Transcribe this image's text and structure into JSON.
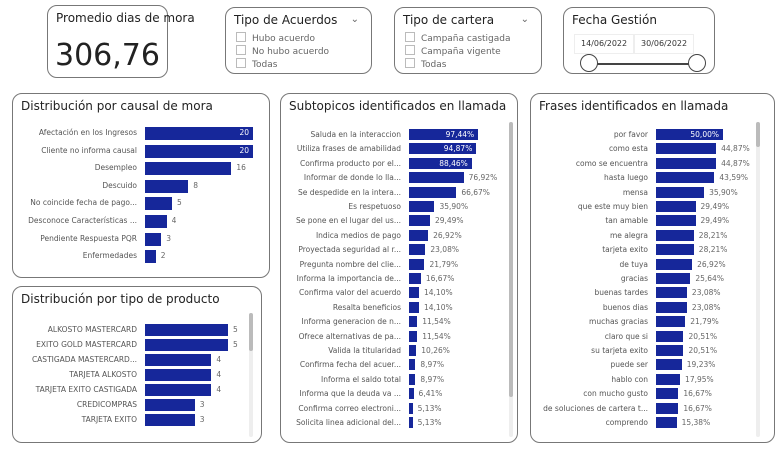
{
  "kpi": {
    "title": "Promedio dias de mora",
    "value": "306,76"
  },
  "acuerdos": {
    "title": "Tipo de Acuerdos",
    "options": [
      "Hubo acuerdo",
      "No hubo acuerdo",
      "Todas"
    ]
  },
  "cartera": {
    "title": "Tipo de cartera",
    "options": [
      "Campaña castigada",
      "Campaña vigente",
      "Todas"
    ]
  },
  "fecha": {
    "title": "Fecha Gestión",
    "start": "14/06/2022",
    "end": "30/06/2022"
  },
  "chart_data": [
    {
      "id": "causal",
      "type": "bar",
      "orientation": "horizontal",
      "title": "Distribución por causal de mora",
      "max": 20,
      "categories": [
        "Afectación en los Ingresos",
        "Cliente no informa causal",
        "Desempleo",
        "Descuido",
        "No coincide fecha de pago...",
        "Desconoce Características ...",
        "Pendiente Respuesta PQR",
        "Enfermedades"
      ],
      "values": [
        20,
        20,
        16,
        8,
        5,
        4,
        3,
        2
      ],
      "labels": [
        "20",
        "20",
        "16",
        "8",
        "5",
        "4",
        "3",
        "2"
      ]
    },
    {
      "id": "producto",
      "type": "bar",
      "orientation": "horizontal",
      "title": "Distribución por tipo de producto",
      "max": 5,
      "categories": [
        "ALKOSTO MASTERCARD",
        "EXITO GOLD MASTERCARD",
        "CASTIGADA MASTERCARD...",
        "TARJETA ALKOSTO",
        "TARJETA EXITO CASTIGADA",
        "CREDICOMPRAS",
        "TARJETA EXITO"
      ],
      "values": [
        5,
        5,
        4,
        4,
        4,
        3,
        3
      ],
      "labels": [
        "5",
        "5",
        "4",
        "4",
        "4",
        "3",
        "3"
      ]
    },
    {
      "id": "subtopicos",
      "type": "bar",
      "orientation": "horizontal",
      "title": "Subtopicos identificados en llamada",
      "max": 100,
      "categories": [
        "Saluda en la interaccion",
        "Utiliza frases de amabilidad",
        "Confirma producto por el...",
        "Informar de donde lo lla...",
        "Se despedide en la intera...",
        "Es respetuoso",
        "Se pone en el lugar del us...",
        "Indica medios de pago",
        "Proyectada seguridad al r...",
        "Pregunta nombre del clie...",
        "Informa la importancia de...",
        "Confirma valor del acuerdo",
        "Resalta beneficios",
        "Informa generacion de n...",
        "Ofrece alternativas de pa...",
        "Valida la titularidad",
        "Confirma fecha del acuer...",
        "Informa el saldo total",
        "Informa que la deuda va ...",
        "Confirma correo electroni...",
        "Solicita linea adicional del..."
      ],
      "values": [
        97.44,
        94.87,
        88.46,
        76.92,
        66.67,
        35.9,
        29.49,
        26.92,
        23.08,
        21.79,
        16.67,
        14.1,
        14.1,
        11.54,
        11.54,
        10.26,
        8.97,
        8.97,
        6.41,
        5.13,
        5.13
      ],
      "labels": [
        "97,44%",
        "94,87%",
        "88,46%",
        "76,92%",
        "66,67%",
        "35,90%",
        "29,49%",
        "26,92%",
        "23,08%",
        "21,79%",
        "16,67%",
        "14,10%",
        "14,10%",
        "11,54%",
        "11,54%",
        "10,26%",
        "8,97%",
        "8,97%",
        "6,41%",
        "5,13%",
        "5,13%"
      ]
    },
    {
      "id": "frases",
      "type": "bar",
      "orientation": "horizontal",
      "title": "Frases identificados en llamada",
      "max": 100,
      "categories": [
        "por favor",
        "como esta",
        "como se encuentra",
        "hasta luego",
        "mensa",
        "que este muy bien",
        "tan amable",
        "me alegra",
        "tarjeta exito",
        "de tuya",
        "gracias",
        "buenas tardes",
        "buenos dias",
        "muchas gracias",
        "claro que si",
        "su tarjeta exito",
        "puede ser",
        "hablo con",
        "con mucho gusto",
        "de soluciones de cartera t...",
        "comprendo"
      ],
      "values": [
        50.0,
        44.87,
        44.87,
        43.59,
        35.9,
        29.49,
        29.49,
        28.21,
        28.21,
        26.92,
        25.64,
        23.08,
        23.08,
        21.79,
        20.51,
        20.51,
        19.23,
        17.95,
        16.67,
        16.67,
        15.38
      ],
      "labels": [
        "50,00%",
        "44,87%",
        "44,87%",
        "43,59%",
        "35,90%",
        "29,49%",
        "29,49%",
        "28,21%",
        "28,21%",
        "26,92%",
        "25,64%",
        "23,08%",
        "23,08%",
        "21,79%",
        "20,51%",
        "20,51%",
        "19,23%",
        "17,95%",
        "16,67%",
        "16,67%",
        "15,38%"
      ]
    }
  ],
  "colors": {
    "bar": "#16279a",
    "border": "#777777"
  }
}
